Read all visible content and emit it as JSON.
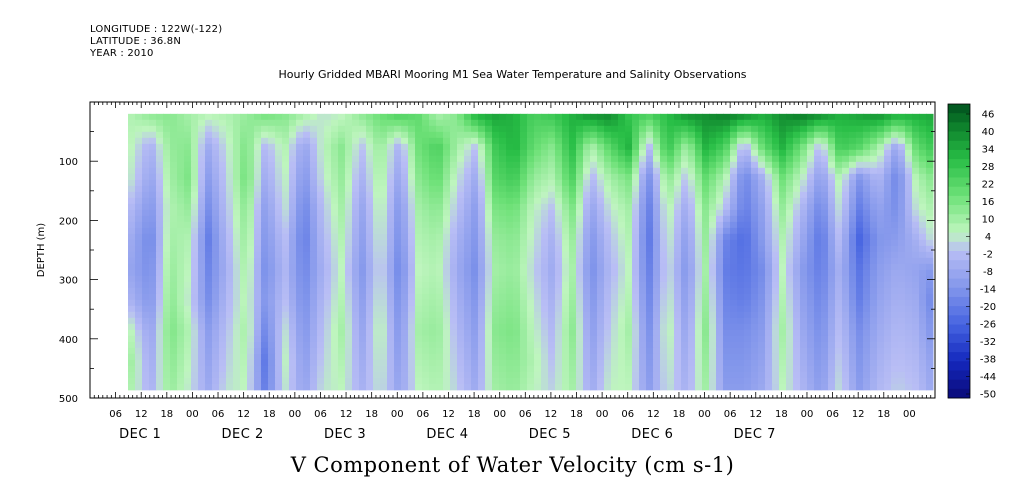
{
  "header": {
    "longitude": "LONGITUDE : 122W(-122)",
    "latitude": "LATITUDE : 36.8N",
    "year": "YEAR : 2010",
    "title": "Hourly Gridded MBARI Mooring M1 Sea Water Temperature and Salinity Observations"
  },
  "chart_data": {
    "type": "heatmap",
    "title": "Hourly Gridded MBARI Mooring M1 Sea Water Temperature and Salinity Observations",
    "xlabel": "V Component of Water Velocity (cm s-1)",
    "ylabel": "DEPTH (m)",
    "ylim": [
      500,
      0
    ],
    "yticks": [
      100,
      200,
      300,
      400,
      500
    ],
    "x_hour_ticks": [
      "06",
      "12",
      "18",
      "00",
      "06",
      "12",
      "18",
      "00",
      "06",
      "12",
      "18",
      "00",
      "06",
      "12",
      "18",
      "00",
      "06",
      "12",
      "18",
      "00",
      "06",
      "12",
      "18",
      "00",
      "06",
      "12",
      "18",
      "00",
      "06",
      "12",
      "18",
      "00"
    ],
    "x_days": [
      "DEC  1",
      "DEC  2",
      "DEC  3",
      "DEC  4",
      "DEC  5",
      "DEC  6",
      "DEC  7"
    ],
    "colorbar_labels": [
      "46",
      "40",
      "34",
      "28",
      "22",
      "16",
      "10",
      "4",
      "-2",
      "-8",
      "-14",
      "-20",
      "-26",
      "-32",
      "-38",
      "-44",
      "-50"
    ],
    "data_start_depth_m": 20,
    "data_end_depth_m": 485,
    "rows": [
      {
        "depth": 30,
        "values": [
          6,
          10,
          12,
          8,
          4,
          6,
          10,
          14,
          12,
          6,
          2,
          4,
          10,
          16,
          20,
          18,
          8,
          12,
          28,
          32,
          30,
          22,
          24,
          30,
          34,
          36,
          26,
          20,
          28,
          34,
          36,
          38,
          34,
          30,
          36,
          38,
          34,
          30,
          32,
          34,
          28,
          30,
          32
        ]
      },
      {
        "depth": 70,
        "values": [
          4,
          -6,
          10,
          12,
          -8,
          2,
          14,
          -4,
          6,
          -10,
          4,
          12,
          -2,
          10,
          -6,
          16,
          22,
          8,
          -2,
          24,
          30,
          18,
          12,
          28,
          6,
          20,
          30,
          -4,
          26,
          8,
          30,
          22,
          -6,
          18,
          30,
          16,
          -4,
          24,
          20,
          8,
          -10,
          18,
          26
        ]
      },
      {
        "depth": 120,
        "values": [
          2,
          -10,
          8,
          14,
          -12,
          0,
          16,
          -8,
          4,
          -14,
          2,
          10,
          -6,
          8,
          -10,
          12,
          18,
          2,
          -8,
          20,
          24,
          10,
          6,
          22,
          -4,
          8,
          14,
          -16,
          12,
          -2,
          18,
          6,
          -18,
          -6,
          16,
          4,
          -12,
          6,
          -14,
          -4,
          -18,
          6,
          14
        ]
      },
      {
        "depth": 170,
        "values": [
          -4,
          -14,
          6,
          10,
          -16,
          -2,
          12,
          -12,
          2,
          -18,
          -2,
          8,
          -10,
          6,
          -14,
          8,
          12,
          -2,
          -12,
          14,
          16,
          4,
          -2,
          14,
          -10,
          2,
          8,
          -20,
          6,
          -8,
          12,
          -2,
          -20,
          -10,
          10,
          -4,
          -18,
          2,
          -20,
          -10,
          -16,
          2,
          8
        ]
      },
      {
        "depth": 220,
        "values": [
          -8,
          -18,
          8,
          6,
          -20,
          -4,
          10,
          -14,
          -2,
          -20,
          -4,
          6,
          -12,
          4,
          -16,
          6,
          8,
          -6,
          -14,
          10,
          12,
          2,
          -6,
          10,
          -14,
          -2,
          6,
          -22,
          4,
          -12,
          10,
          -18,
          -24,
          -12,
          6,
          -8,
          -22,
          -2,
          -26,
          -14,
          -12,
          -6,
          4
        ]
      },
      {
        "depth": 270,
        "values": [
          -10,
          -16,
          10,
          4,
          -18,
          -6,
          8,
          -16,
          -4,
          -18,
          -6,
          4,
          -14,
          2,
          -18,
          4,
          6,
          -8,
          -16,
          8,
          10,
          0,
          -8,
          8,
          -16,
          -4,
          4,
          -20,
          2,
          -14,
          8,
          -20,
          -22,
          -16,
          4,
          -12,
          -20,
          -6,
          -22,
          -12,
          -8,
          -10,
          -14
        ]
      },
      {
        "depth": 320,
        "values": [
          -6,
          -14,
          12,
          2,
          -16,
          -4,
          6,
          -14,
          -2,
          -16,
          -4,
          6,
          -12,
          4,
          -16,
          6,
          8,
          -6,
          -14,
          10,
          12,
          2,
          -6,
          10,
          -14,
          -2,
          6,
          -18,
          4,
          -12,
          10,
          -18,
          -20,
          -14,
          6,
          -10,
          -18,
          -4,
          -20,
          -10,
          -6,
          -8,
          -20
        ]
      },
      {
        "depth": 370,
        "values": [
          4,
          -10,
          14,
          6,
          -12,
          -2,
          8,
          -18,
          2,
          -14,
          -2,
          8,
          -10,
          6,
          -14,
          8,
          10,
          -4,
          -12,
          12,
          14,
          4,
          -4,
          12,
          -12,
          0,
          8,
          -16,
          6,
          -10,
          12,
          -16,
          -16,
          -12,
          8,
          -8,
          -16,
          -2,
          -16,
          -8,
          -4,
          -6,
          -16
        ]
      },
      {
        "depth": 420,
        "values": [
          8,
          -8,
          12,
          4,
          -10,
          0,
          6,
          -22,
          4,
          -12,
          0,
          6,
          -8,
          4,
          -12,
          6,
          8,
          -2,
          -10,
          10,
          12,
          6,
          -2,
          10,
          -10,
          2,
          6,
          -14,
          4,
          -8,
          10,
          -14,
          -14,
          -10,
          6,
          -6,
          -14,
          0,
          -14,
          -6,
          -2,
          -4,
          -12
        ]
      },
      {
        "depth": 470,
        "values": [
          6,
          -6,
          10,
          2,
          -8,
          2,
          4,
          -20,
          2,
          -10,
          2,
          4,
          -6,
          2,
          -10,
          4,
          6,
          0,
          -8,
          8,
          10,
          4,
          0,
          8,
          -8,
          4,
          4,
          -12,
          2,
          -6,
          8,
          -12,
          -12,
          -8,
          4,
          -4,
          -12,
          2,
          -12,
          -4,
          0,
          -2,
          -10
        ]
      }
    ]
  }
}
